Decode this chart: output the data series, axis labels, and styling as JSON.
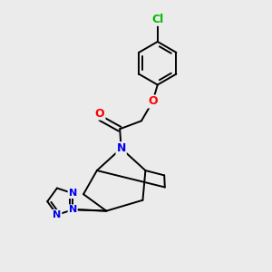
{
  "background_color": "#ebebeb",
  "figsize": [
    3.0,
    3.0
  ],
  "dpi": 100,
  "atom_colors": {
    "C": "#000000",
    "N": "#0000ee",
    "O": "#ff0000",
    "Cl": "#00bb00"
  },
  "bond_color": "#000000",
  "bond_width": 1.4,
  "xlim": [
    0,
    10
  ],
  "ylim": [
    0,
    10
  ]
}
